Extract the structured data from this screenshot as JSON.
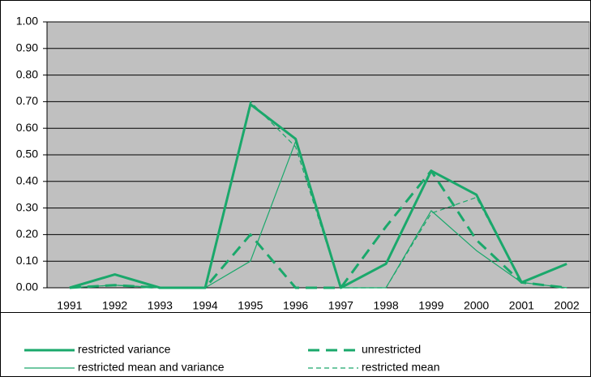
{
  "chart_data": {
    "type": "line",
    "categories": [
      "1991",
      "1992",
      "1993",
      "1994",
      "1995",
      "1996",
      "1997",
      "1998",
      "1999",
      "2000",
      "2001",
      "2002"
    ],
    "series": [
      {
        "name": "restricted variance",
        "color": "#1aa86b",
        "width": 3,
        "dashed": false,
        "values": [
          0,
          0.05,
          0,
          0,
          0.69,
          0.56,
          0,
          0.09,
          0.44,
          0.35,
          0.02,
          0.09
        ]
      },
      {
        "name": "unrestricted",
        "color": "#1aa86b",
        "width": 3,
        "dashed": true,
        "values": [
          0,
          0.01,
          0,
          0,
          0.2,
          0,
          0,
          0.23,
          0.44,
          0.18,
          0.02,
          0
        ]
      },
      {
        "name": "restricted mean and variance",
        "color": "#1aa86b",
        "width": 1.2,
        "dashed": false,
        "values": [
          0,
          0.01,
          0,
          0,
          0.1,
          0.55,
          0,
          0,
          0.29,
          0.14,
          0.02,
          0
        ]
      },
      {
        "name": "restricted mean",
        "color": "#1aa86b",
        "width": 1.2,
        "dashed": true,
        "values": [
          0,
          0.01,
          0,
          0,
          0.7,
          0.53,
          0,
          0,
          0.28,
          0.34,
          0.02,
          0
        ]
      }
    ],
    "ylim": [
      0,
      1
    ],
    "yticks": [
      {
        "value": 0,
        "label": "0.00"
      },
      {
        "value": 0.1,
        "label": "0.10"
      },
      {
        "value": 0.2,
        "label": "0.20"
      },
      {
        "value": 0.3,
        "label": "0.30"
      },
      {
        "value": 0.4,
        "label": "0.40"
      },
      {
        "value": 0.5,
        "label": "0.50"
      },
      {
        "value": 0.6,
        "label": "0.60"
      },
      {
        "value": 0.7,
        "label": "0.70"
      },
      {
        "value": 0.8,
        "label": "0.80"
      },
      {
        "value": 0.9,
        "label": "0.90"
      },
      {
        "value": 1,
        "label": "1.00"
      }
    ],
    "grid": true,
    "plot_background": "#c0c0c0",
    "legend": "bottom"
  }
}
